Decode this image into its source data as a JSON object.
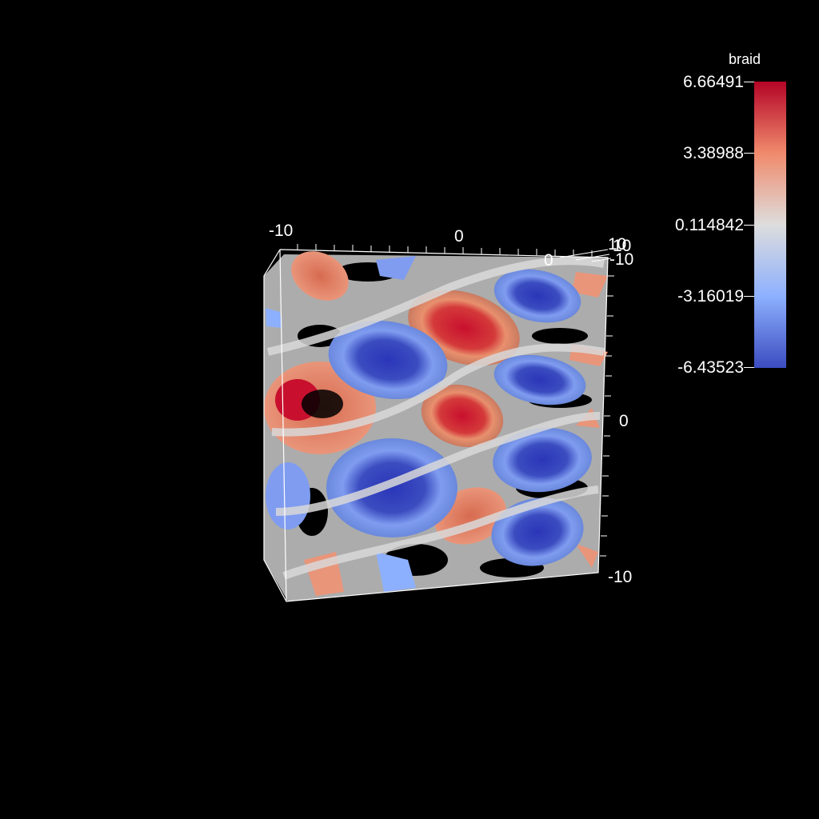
{
  "legend": {
    "title": "braid",
    "ticks": [
      "6.66491",
      "3.38988",
      "0.114842",
      "-3.16019",
      "-6.43523"
    ],
    "colors": {
      "max": "#b40426",
      "mid": "#dddddd",
      "min": "#3b4cc0"
    }
  },
  "axes": {
    "top_left": "-10",
    "top_center": "0",
    "top_right_a": "10",
    "top_right_b": "10",
    "top_right_inner": "0",
    "right_top": "-10",
    "right_center": "0",
    "right_bottom": "-10"
  },
  "background_color": "#000000"
}
